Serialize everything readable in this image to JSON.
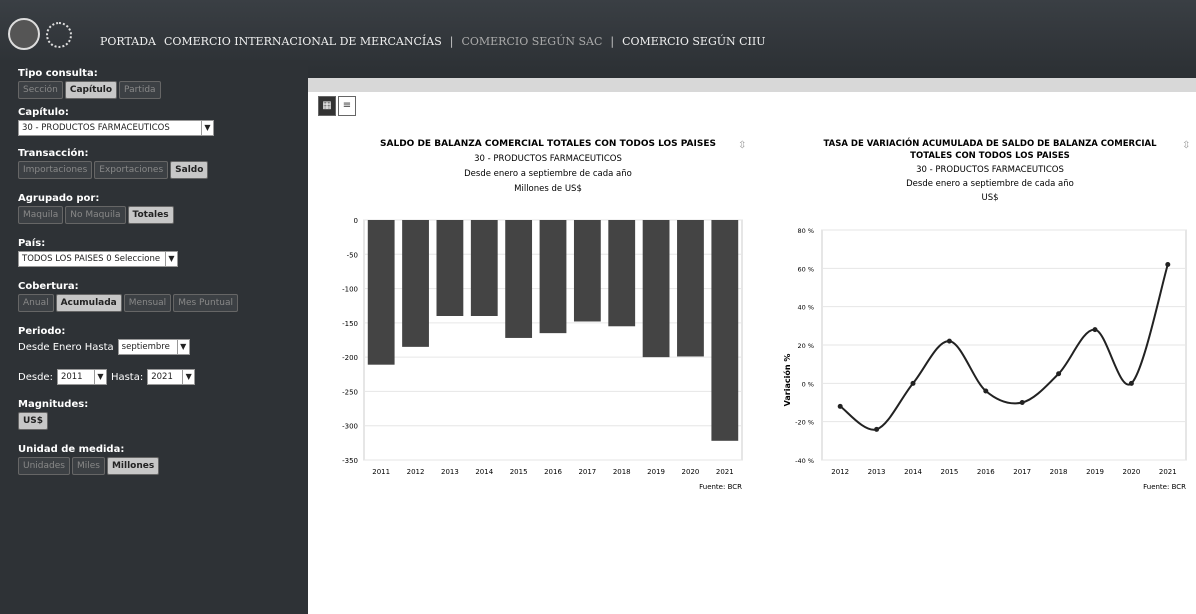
{
  "nav": {
    "items": [
      "PORTADA",
      "COMERCIO INTERNACIONAL DE MERCANCÍAS",
      "COMERCIO SEGÚN SAC",
      "COMERCIO SEGÚN CIIU"
    ]
  },
  "sidebar": {
    "tipo_label": "Tipo consulta:",
    "tipo_options": [
      "Sección",
      "Capítulo",
      "Partida"
    ],
    "tipo_active": 1,
    "capitulo_label": "Capítulo:",
    "capitulo_value": "30 - PRODUCTOS FARMACEUTICOS",
    "transaccion_label": "Transacción:",
    "transaccion_options": [
      "Importaciones",
      "Exportaciones",
      "Saldo"
    ],
    "transaccion_active": 2,
    "agrupado_label": "Agrupado por:",
    "agrupado_options": [
      "Maquila",
      "No Maquila",
      "Totales"
    ],
    "agrupado_active": 2,
    "pais_label": "País:",
    "pais_value": "TODOS LOS PAISES 0 Seleccione",
    "cobertura_label": "Cobertura:",
    "cobertura_options": [
      "Anual",
      "Acumulada",
      "Mensual",
      "Mes Puntual"
    ],
    "cobertura_active": 1,
    "periodo_label": "Periodo:",
    "desde_enero_label": "Desde Enero Hasta",
    "desde_enero_value": "septiembre",
    "desde_label": "Desde:",
    "desde_value": "2011",
    "hasta_label": "Hasta:",
    "hasta_value": "2021",
    "magnitudes_label": "Magnitudes:",
    "magnitudes_value": "US$",
    "unidad_label": "Unidad de medida:",
    "unidad_options": [
      "Unidades",
      "Miles",
      "Millones"
    ],
    "unidad_active": 2
  },
  "chart_data": [
    {
      "type": "bar",
      "title": "SALDO DE BALANZA COMERCIAL TOTALES CON TODOS LOS PAISES",
      "subtitle1": "30 - PRODUCTOS FARMACEUTICOS",
      "subtitle2": "Desde enero a septiembre de cada año",
      "subtitle3": "Millones de US$",
      "categories": [
        "2011",
        "2012",
        "2013",
        "2014",
        "2015",
        "2016",
        "2017",
        "2018",
        "2019",
        "2020",
        "2021"
      ],
      "values": [
        -211,
        -185,
        -140,
        -140,
        -172,
        -165,
        -148,
        -155,
        -200,
        -199,
        -322
      ],
      "ylim": [
        -350,
        0
      ],
      "yticks": [
        0,
        -50,
        -100,
        -150,
        -200,
        -250,
        -300,
        -350
      ],
      "source": "Fuente: BCR",
      "bar_color": "#444444"
    },
    {
      "type": "line",
      "title_line1": "TASA DE VARIACIÓN ACUMULADA DE SALDO DE BALANZA COMERCIAL",
      "title_line2": "TOTALES CON TODOS LOS PAISES",
      "subtitle1": "30 - PRODUCTOS FARMACEUTICOS",
      "subtitle2": "Desde enero a septiembre de cada año",
      "subtitle3": "US$",
      "x": [
        "2012",
        "2013",
        "2014",
        "2015",
        "2016",
        "2017",
        "2018",
        "2019",
        "2020",
        "2021"
      ],
      "values": [
        -12,
        -24,
        0,
        22,
        -4,
        -10,
        5,
        28,
        0,
        62
      ],
      "ylim": [
        -40,
        80
      ],
      "yticks": [
        "80 %",
        "60 %",
        "40 %",
        "20 %",
        "0 %",
        "-20 %",
        "-40 %"
      ],
      "ylabel": "Variación %",
      "source": "Fuente: BCR",
      "line_color": "#222222"
    }
  ]
}
